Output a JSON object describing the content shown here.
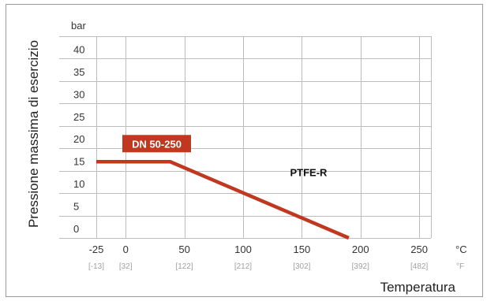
{
  "chart_data": {
    "type": "line",
    "ylabel": "Pressione massima di esercizio",
    "xlabel": "Temperatura",
    "y_unit": "bar",
    "x_unit": "°C",
    "x_unit_alt": "°F",
    "ylim": [
      0,
      45
    ],
    "xlim": [
      -25,
      260
    ],
    "y_ticks": [
      0,
      5,
      10,
      15,
      20,
      25,
      30,
      35,
      40
    ],
    "y_tick_labels": [
      "0",
      "5",
      "10",
      "15",
      "20",
      "25",
      "30",
      "35",
      "40"
    ],
    "x_ticks": [
      -25,
      0,
      50,
      100,
      150,
      200,
      250
    ],
    "x_tick_labels": [
      "-25",
      "0",
      "50",
      "100",
      "150",
      "200",
      "250"
    ],
    "x_tick_labels_f": [
      "[-13]",
      "[32]",
      "[122]",
      "[212]",
      "[302]",
      "[392]",
      "[482]"
    ],
    "grid": true,
    "series": [
      {
        "name": "DN 50-250",
        "color": "#c0381f",
        "x": [
          -25,
          38,
          190
        ],
        "y": [
          17,
          17,
          0
        ]
      }
    ],
    "annotations": [
      {
        "text": "PTFE-R",
        "x": 140,
        "y": 13.8
      }
    ]
  }
}
